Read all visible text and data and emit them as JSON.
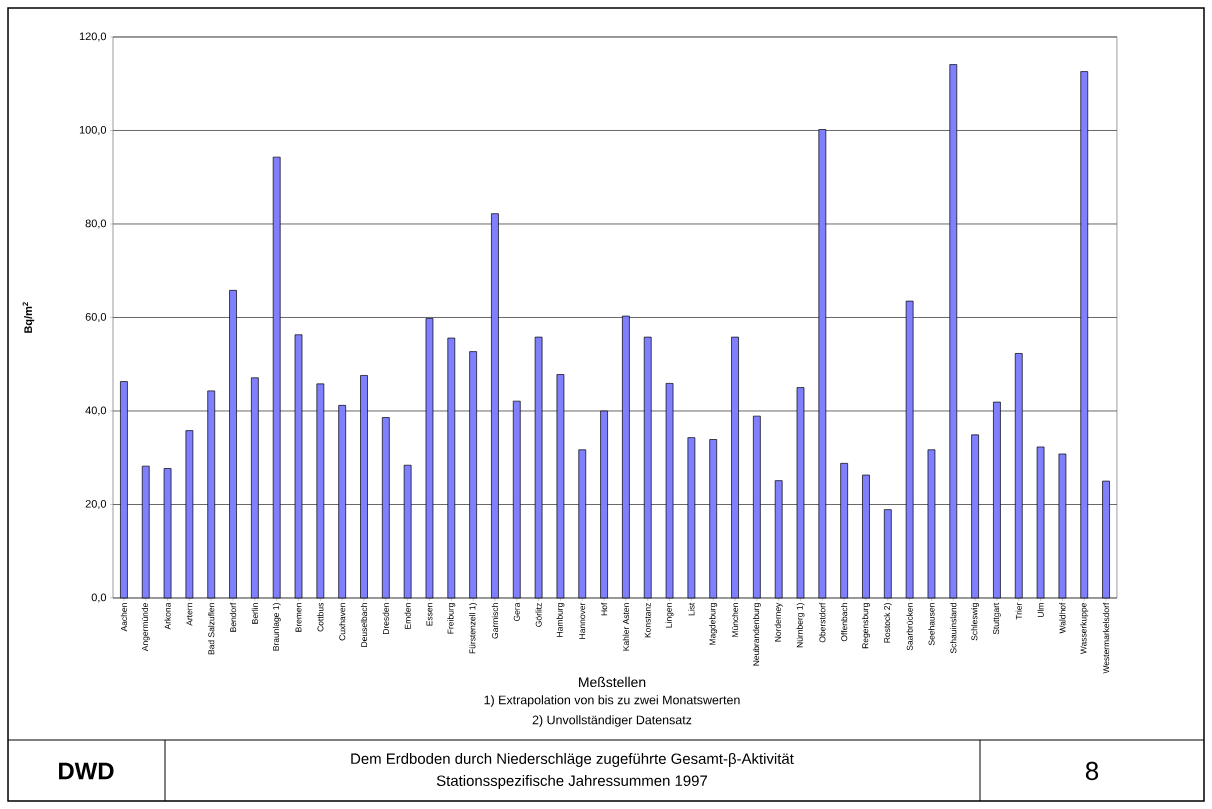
{
  "chart_data": {
    "type": "bar",
    "title": "Dem Erdboden durch Niederschläge zugeführte Gesamt-β-Aktivität",
    "subtitle": "Stationsspezifische Jahressummen 1997",
    "xlabel": "Meßstellen",
    "ylabel": "Bq/m$^{2}$",
    "categories": [
      "Aachen",
      "Angermünde",
      "Arkona",
      "Artern",
      "Bad Salzuflen",
      "Bendorf",
      "Berlin",
      "Braunlage 1)",
      "Bremen",
      "Cottbus",
      "Cuxhaven",
      "Deuselbach",
      "Dresden",
      "Emden",
      "Essen",
      "Freiburg",
      "Fürstenzell 1)",
      "Garmisch",
      "Gera",
      "Görlitz",
      "Hamburg",
      "Hannover",
      "Hof",
      "Kahler Asten",
      "Konstanz",
      "Lingen",
      "List",
      "Magdeburg",
      "München",
      "Neubrandenburg",
      "Norderney",
      "Nürnberg 1)",
      "Oberstdorf",
      "Offenbach",
      "Regensburg",
      "Rostock 2)",
      "Saarbrücken",
      "Seehausen",
      "Schauinsland",
      "Schleswig",
      "Stuttgart",
      "Trier",
      "Ulm",
      "Waldhof",
      "Wasserkuppe",
      "Westermarkelsdorf"
    ],
    "values": [
      46.3,
      28.2,
      27.7,
      35.8,
      44.3,
      65.8,
      47.1,
      94.3,
      56.3,
      45.8,
      41.2,
      47.6,
      38.6,
      28.4,
      59.8,
      55.6,
      52.7,
      82.2,
      42.1,
      55.8,
      47.8,
      31.7,
      40.0,
      60.3,
      55.8,
      45.9,
      34.3,
      33.9,
      55.8,
      38.9,
      25.1,
      45.0,
      100.2,
      28.8,
      26.3,
      18.9,
      63.5,
      31.7,
      114.1,
      34.9,
      41.9,
      52.3,
      32.3,
      30.8,
      112.6,
      25.0
    ],
    "color": "#8080ff",
    "ylim": [
      0,
      120
    ],
    "yticks": [
      {
        "value": 0,
        "label": "0,0"
      },
      {
        "value": 20,
        "label": "20,0"
      },
      {
        "value": 40,
        "label": "40,0"
      },
      {
        "value": 60,
        "label": "60,0"
      },
      {
        "value": 80,
        "label": "80,0"
      },
      {
        "value": 100,
        "label": "100,0"
      },
      {
        "value": 120,
        "label": "120,0"
      }
    ],
    "grid": "y",
    "annotations": [
      "1) Extrapolation von bis zu zwei Monatswerten",
      "2) Unvollständiger Datensatz",
      "DWD",
      "8"
    ]
  }
}
